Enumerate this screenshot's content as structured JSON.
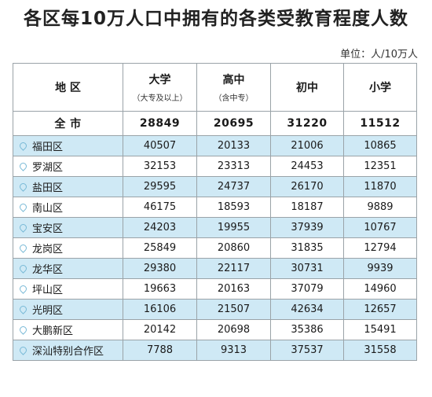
{
  "title": "各区每10万人口中拥有的各类受教育程度人数",
  "unit": "单位：人/10万人",
  "headers": [
    {
      "main": "地  区",
      "sub": ""
    },
    {
      "main": "大学",
      "sub": "（大专及以上）"
    },
    {
      "main": "高中",
      "sub": "（含中专）"
    },
    {
      "main": "初中",
      "sub": ""
    },
    {
      "main": "小学",
      "sub": ""
    }
  ],
  "total": {
    "name": "全  市",
    "values": [
      "28849",
      "20695",
      "31220",
      "11512"
    ]
  },
  "rows": [
    {
      "name": "福田区",
      "values": [
        "40507",
        "20133",
        "21006",
        "10865"
      ]
    },
    {
      "name": "罗湖区",
      "values": [
        "32153",
        "23313",
        "24453",
        "12351"
      ]
    },
    {
      "name": "盐田区",
      "values": [
        "29595",
        "24737",
        "26170",
        "11870"
      ]
    },
    {
      "name": "南山区",
      "values": [
        "46175",
        "18593",
        "18187",
        "9889"
      ]
    },
    {
      "name": "宝安区",
      "values": [
        "24203",
        "19955",
        "37939",
        "10767"
      ]
    },
    {
      "name": "龙岗区",
      "values": [
        "25849",
        "20860",
        "31835",
        "12794"
      ]
    },
    {
      "name": "龙华区",
      "values": [
        "29380",
        "22117",
        "30731",
        "9939"
      ]
    },
    {
      "name": "坪山区",
      "values": [
        "19663",
        "20163",
        "37079",
        "14960"
      ]
    },
    {
      "name": "光明区",
      "values": [
        "16106",
        "21507",
        "42634",
        "12657"
      ]
    },
    {
      "name": "大鹏新区",
      "values": [
        "20142",
        "20698",
        "35386",
        "15491"
      ]
    },
    {
      "name": "深汕特别合作区",
      "values": [
        "7788",
        "9313",
        "37537",
        "31558"
      ]
    }
  ],
  "colors": {
    "row_alt": "#cfe9f5",
    "border": "#9aa3a8",
    "pin": "#78b9d6"
  },
  "icons": {
    "row_marker": "location-pin-icon"
  }
}
